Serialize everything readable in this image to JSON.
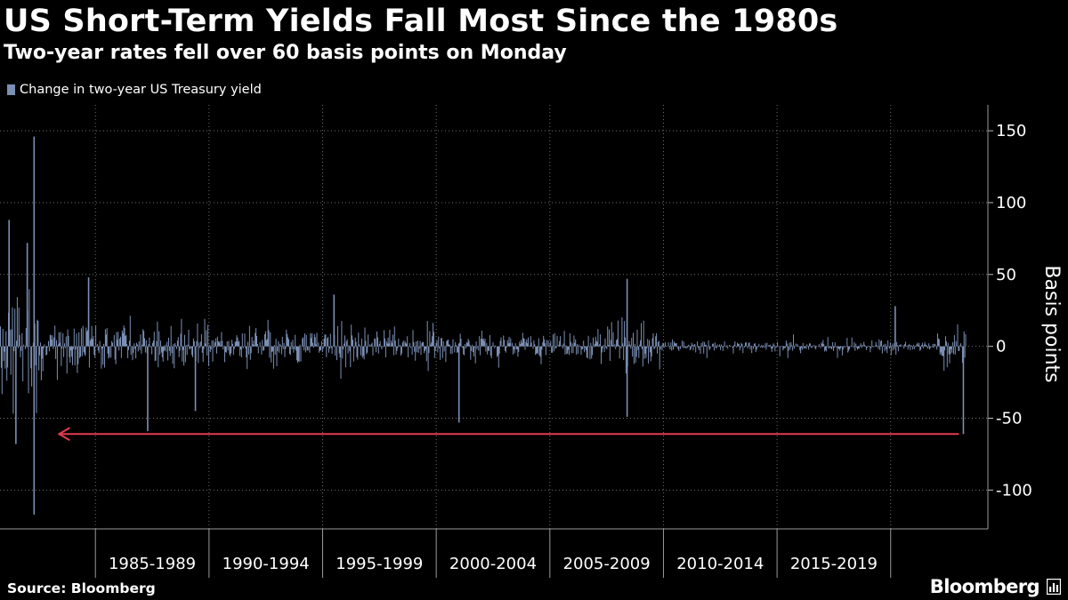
{
  "header": {
    "title": "US Short-Term Yields Fall Most Since the 1980s",
    "subtitle": "Two-year rates fell over 60 basis points on Monday"
  },
  "footer": {
    "source": "Source: Bloomberg",
    "brand": "Bloomberg",
    "brand_icon": "bloomberg-terminal-icon"
  },
  "colors": {
    "series": "#7b8fb4",
    "arrow": "#e23b4f",
    "gridline": "#6f6f6f",
    "background": "#000000"
  },
  "chart_data": {
    "type": "bar",
    "title": "US Short-Term Yields Fall Most Since the 1980s",
    "subtitle": "Two-year rates fell over 60 basis points on Monday",
    "xlabel": "",
    "ylabel": "Basis points",
    "ylim": [
      -127,
      168
    ],
    "y_ticks": [
      150,
      100,
      50,
      0,
      -50,
      -100
    ],
    "x_range": [
      1980.8,
      2023.3
    ],
    "x_periods": [
      "1985-1989",
      "1990-1994",
      "1995-1999",
      "2000-2004",
      "2005-2009",
      "2010-2014",
      "2015-2019"
    ],
    "x_period_boundaries": [
      1985,
      1990,
      1995,
      2000,
      2005,
      2010,
      2015,
      2020
    ],
    "legend": {
      "position": "top-left",
      "entries": [
        "Change in two-year US Treasury yield"
      ]
    },
    "grid": true,
    "series": [
      {
        "name": "Change in two-year US Treasury yield",
        "notable_points": [
          {
            "x": 1981.2,
            "y": 88
          },
          {
            "x": 1981.5,
            "y": -68
          },
          {
            "x": 1982.0,
            "y": 72
          },
          {
            "x": 1982.3,
            "y": 146
          },
          {
            "x": 1982.3,
            "y": -117
          },
          {
            "x": 1984.7,
            "y": 48
          },
          {
            "x": 1987.3,
            "y": -59
          },
          {
            "x": 1989.4,
            "y": -45
          },
          {
            "x": 1995.5,
            "y": 36
          },
          {
            "x": 2001.0,
            "y": -53
          },
          {
            "x": 2008.4,
            "y": 47
          },
          {
            "x": 2008.4,
            "y": -49
          },
          {
            "x": 2020.2,
            "y": 28
          },
          {
            "x": 2023.2,
            "y": -61
          }
        ]
      }
    ],
    "annotations": [
      {
        "type": "arrow",
        "direction": "left",
        "y": -61,
        "x_from": 2023.0,
        "x_to": 1983.4
      }
    ]
  }
}
